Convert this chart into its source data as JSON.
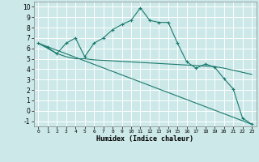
{
  "xlabel": "Humidex (Indice chaleur)",
  "xlim": [
    -0.5,
    23.5
  ],
  "ylim": [
    -1.5,
    10.5
  ],
  "yticks": [
    -1,
    0,
    1,
    2,
    3,
    4,
    5,
    6,
    7,
    8,
    9,
    10
  ],
  "xticks": [
    0,
    1,
    2,
    3,
    4,
    5,
    6,
    7,
    8,
    9,
    10,
    11,
    12,
    13,
    14,
    15,
    16,
    17,
    18,
    19,
    20,
    21,
    22,
    23
  ],
  "bg_color": "#cce8e8",
  "grid_color": "#ffffff",
  "line_color": "#1a7a6e",
  "series": [
    {
      "x": [
        0,
        1,
        2,
        3,
        4,
        5,
        6,
        7,
        8,
        9,
        10,
        11,
        12,
        13,
        14,
        15,
        16,
        17,
        18,
        19,
        20,
        21,
        22,
        23
      ],
      "y": [
        6.5,
        6.1,
        5.5,
        6.5,
        7.0,
        5.2,
        6.5,
        7.0,
        7.8,
        8.3,
        8.7,
        9.9,
        8.7,
        8.5,
        8.5,
        6.5,
        4.7,
        4.1,
        4.5,
        4.2,
        3.1,
        2.1,
        -0.7,
        -1.3
      ]
    },
    {
      "x": [
        0,
        23
      ],
      "y": [
        6.5,
        -1.3
      ]
    },
    {
      "x": [
        0,
        1,
        2,
        3,
        4,
        5,
        6,
        7,
        8,
        9,
        10,
        11,
        12,
        13,
        14,
        15,
        16,
        17,
        18,
        19,
        20,
        21,
        22,
        23
      ],
      "y": [
        6.5,
        6.0,
        5.5,
        5.2,
        5.0,
        5.0,
        4.9,
        4.85,
        4.8,
        4.75,
        4.7,
        4.65,
        4.6,
        4.55,
        4.5,
        4.45,
        4.4,
        4.35,
        4.3,
        4.25,
        4.1,
        3.9,
        3.7,
        3.5
      ]
    }
  ]
}
